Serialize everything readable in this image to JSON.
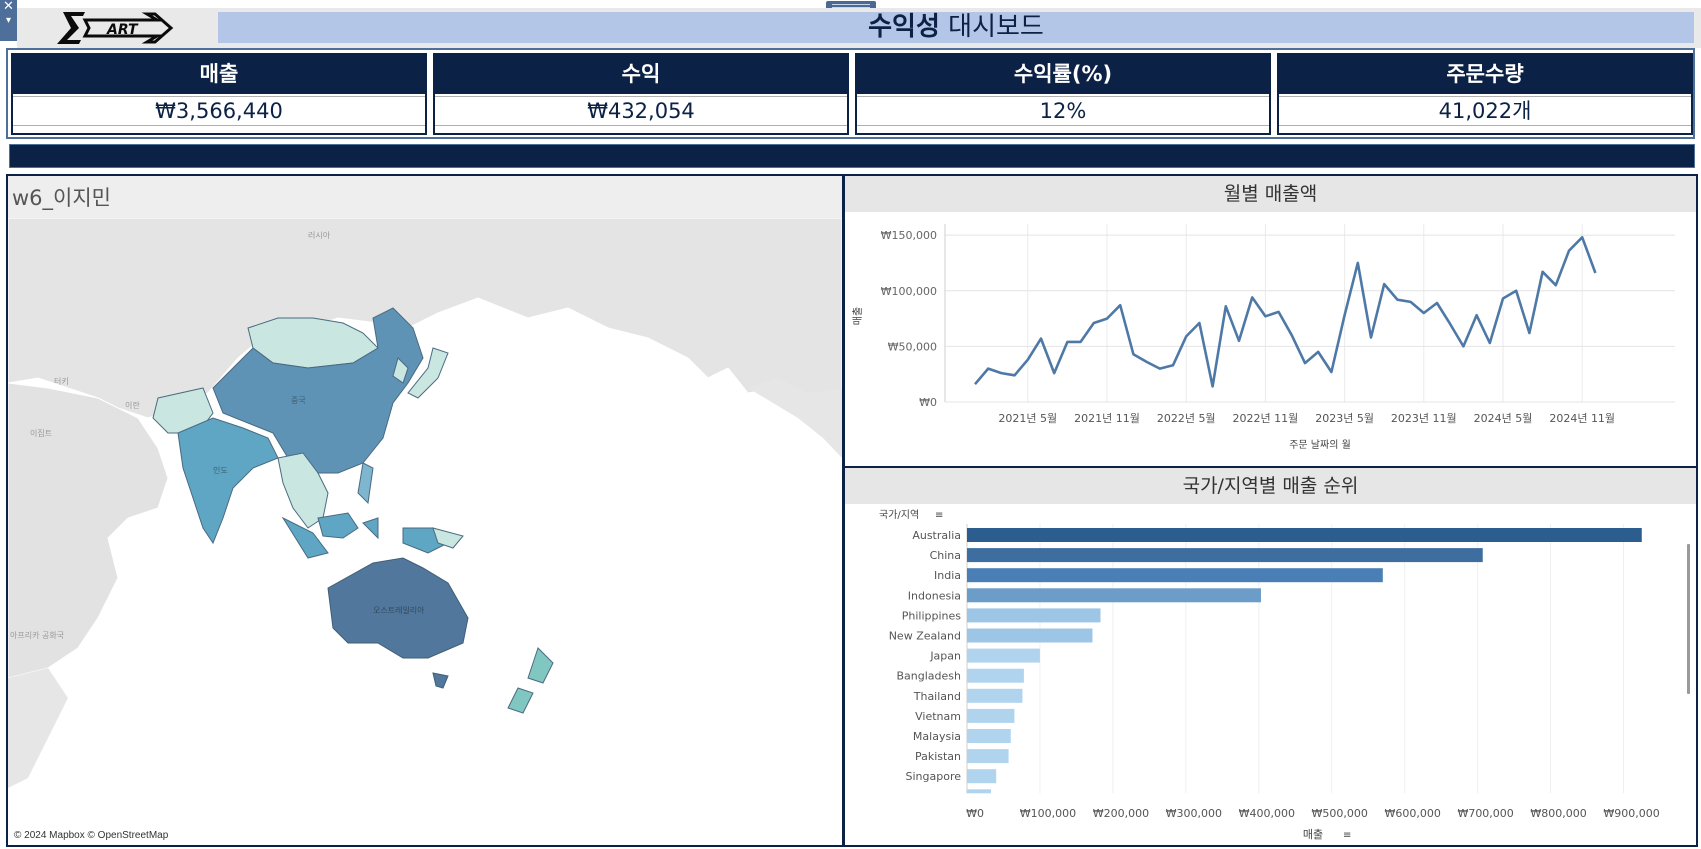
{
  "window": {
    "close_glyph": "✕",
    "menu_glyph": "▾"
  },
  "header": {
    "logo_text": "ART",
    "title_bold": "수익성",
    "title_rest": " 대시보드",
    "colors": {
      "navy": "#0b2145",
      "title_bg": "#b4c6e7",
      "accent": "#4e79a7"
    }
  },
  "kpis": [
    {
      "label": "매출",
      "value": "₩3,566,440"
    },
    {
      "label": "수익",
      "value": "₩432,054"
    },
    {
      "label": "수익률(%)",
      "value": "12%"
    },
    {
      "label": "주문수량",
      "value": "41,022개"
    }
  ],
  "map": {
    "title": "w6_이지민",
    "credit": "© 2024 Mapbox © OpenStreetMap",
    "labels": [
      "러시아",
      "터키",
      "이란",
      "이집트",
      "아프리카 공화국",
      "중국",
      "인도",
      "오스트레일리아"
    ],
    "icon": "world-map-icon"
  },
  "chart_data": [
    {
      "type": "line",
      "title": "월별 매출액",
      "xlabel": "주문 날짜의 월",
      "ylabel": "매출",
      "ylim": [
        0,
        160000
      ],
      "y_ticks": [
        "₩0",
        "₩50,000",
        "₩100,000",
        "₩150,000"
      ],
      "x_ticks": [
        "2021년 5월",
        "2021년 11월",
        "2022년 5월",
        "2022년 11월",
        "2023년 5월",
        "2023년 11월",
        "2024년 5월",
        "2024년 11월"
      ],
      "x": [
        "2021-01",
        "2021-02",
        "2021-03",
        "2021-04",
        "2021-05",
        "2021-06",
        "2021-07",
        "2021-08",
        "2021-09",
        "2021-10",
        "2021-11",
        "2021-12",
        "2022-01",
        "2022-02",
        "2022-03",
        "2022-04",
        "2022-05",
        "2022-06",
        "2022-07",
        "2022-08",
        "2022-09",
        "2022-10",
        "2022-11",
        "2022-12",
        "2023-01",
        "2023-02",
        "2023-03",
        "2023-04",
        "2023-05",
        "2023-06",
        "2023-07",
        "2023-08",
        "2023-09",
        "2023-10",
        "2023-11",
        "2023-12",
        "2024-01",
        "2024-02",
        "2024-03",
        "2024-04",
        "2024-05",
        "2024-06",
        "2024-07",
        "2024-08",
        "2024-09",
        "2024-10",
        "2024-11",
        "2024-12"
      ],
      "series": [
        {
          "values": [
            16000,
            30000,
            26000,
            24000,
            38000,
            57000,
            26000,
            54000,
            54000,
            71000,
            75000,
            87000,
            43000,
            36000,
            30000,
            33000,
            59000,
            71000,
            14000,
            86000,
            55000,
            94000,
            77000,
            81000,
            60000,
            35000,
            45000,
            27000,
            78000,
            125000,
            58000,
            106000,
            92000,
            90000,
            80000,
            89000,
            70000,
            50000,
            78000,
            53000,
            93000,
            100000,
            62000,
            117000,
            105000,
            136000,
            148000,
            116000
          ]
        }
      ],
      "color": "#4e79a7"
    },
    {
      "type": "bar",
      "orientation": "horizontal",
      "title": "국가/지역별 매출 순위",
      "category_header": "국가/지역",
      "xlabel": "매출",
      "xlim": [
        0,
        950000
      ],
      "x_ticks": [
        "₩0",
        "₩100,000",
        "₩200,000",
        "₩300,000",
        "₩400,000",
        "₩500,000",
        "₩600,000",
        "₩700,000",
        "₩800,000",
        "₩900,000"
      ],
      "categories": [
        "Australia",
        "China",
        "India",
        "Indonesia",
        "Philippines",
        "New Zealand",
        "Japan",
        "Bangladesh",
        "Thailand",
        "Vietnam",
        "Malaysia",
        "Pakistan",
        "Singapore"
      ],
      "values": [
        925000,
        707000,
        570000,
        403000,
        183000,
        172000,
        100000,
        78000,
        76000,
        65000,
        60000,
        57000,
        40000
      ],
      "colors": [
        "#2c5d8f",
        "#3e6ea0",
        "#4a7fb5",
        "#6b9dc8",
        "#9cc5e6",
        "#9cc5e6",
        "#b0d4ee",
        "#b0d4ee",
        "#b0d4ee",
        "#b0d4ee",
        "#b0d4ee",
        "#b0d4ee",
        "#b0d4ee"
      ]
    }
  ]
}
